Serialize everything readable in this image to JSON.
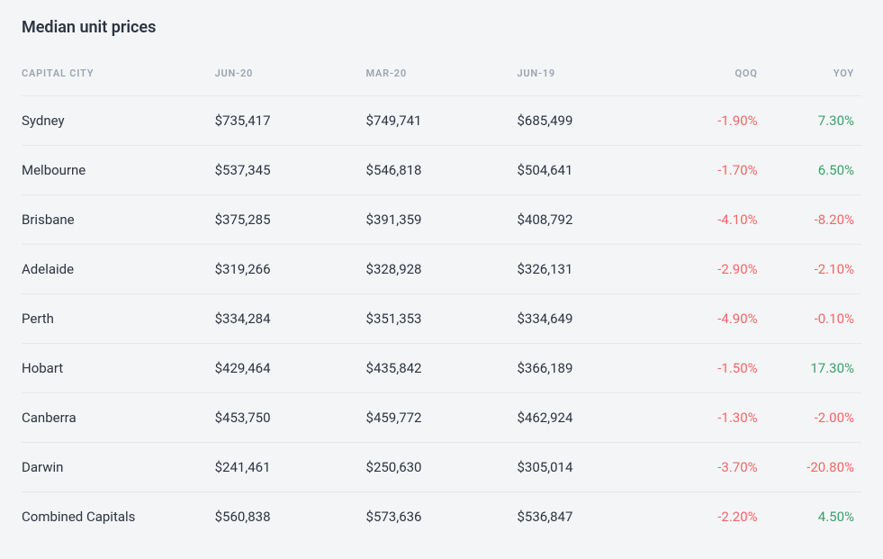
{
  "title": "Median unit prices",
  "table": {
    "type": "table",
    "background_color": "#f4f5f7",
    "border_color": "#e6e8ec",
    "header_color": "#9aa3af",
    "text_color": "#2c3440",
    "negative_color": "#f56565",
    "positive_color": "#38a169",
    "title_fontsize": 18,
    "header_fontsize": 11,
    "cell_fontsize": 15,
    "columns": [
      {
        "key": "city",
        "label": "CAPITAL CITY",
        "align": "left"
      },
      {
        "key": "jun20",
        "label": "JUN-20",
        "align": "left"
      },
      {
        "key": "mar20",
        "label": "MAR-20",
        "align": "left"
      },
      {
        "key": "jun19",
        "label": "JUN-19",
        "align": "left"
      },
      {
        "key": "qoq",
        "label": "QOQ",
        "align": "right"
      },
      {
        "key": "yoy",
        "label": "YOY",
        "align": "right"
      }
    ],
    "rows": [
      {
        "city": "Sydney",
        "jun20": "$735,417",
        "mar20": "$749,741",
        "jun19": "$685,499",
        "qoq": "-1.90%",
        "qoq_sign": "neg",
        "yoy": "7.30%",
        "yoy_sign": "pos"
      },
      {
        "city": "Melbourne",
        "jun20": "$537,345",
        "mar20": "$546,818",
        "jun19": "$504,641",
        "qoq": "-1.70%",
        "qoq_sign": "neg",
        "yoy": "6.50%",
        "yoy_sign": "pos"
      },
      {
        "city": "Brisbane",
        "jun20": "$375,285",
        "mar20": "$391,359",
        "jun19": "$408,792",
        "qoq": "-4.10%",
        "qoq_sign": "neg",
        "yoy": "-8.20%",
        "yoy_sign": "neg"
      },
      {
        "city": "Adelaide",
        "jun20": "$319,266",
        "mar20": "$328,928",
        "jun19": "$326,131",
        "qoq": "-2.90%",
        "qoq_sign": "neg",
        "yoy": "-2.10%",
        "yoy_sign": "neg"
      },
      {
        "city": "Perth",
        "jun20": "$334,284",
        "mar20": "$351,353",
        "jun19": "$334,649",
        "qoq": "-4.90%",
        "qoq_sign": "neg",
        "yoy": "-0.10%",
        "yoy_sign": "neg"
      },
      {
        "city": "Hobart",
        "jun20": "$429,464",
        "mar20": "$435,842",
        "jun19": "$366,189",
        "qoq": "-1.50%",
        "qoq_sign": "neg",
        "yoy": "17.30%",
        "yoy_sign": "pos"
      },
      {
        "city": "Canberra",
        "jun20": "$453,750",
        "mar20": "$459,772",
        "jun19": "$462,924",
        "qoq": "-1.30%",
        "qoq_sign": "neg",
        "yoy": "-2.00%",
        "yoy_sign": "neg"
      },
      {
        "city": "Darwin",
        "jun20": "$241,461",
        "mar20": "$250,630",
        "jun19": "$305,014",
        "qoq": "-3.70%",
        "qoq_sign": "neg",
        "yoy": "-20.80%",
        "yoy_sign": "neg"
      },
      {
        "city": "Combined Capitals",
        "jun20": "$560,838",
        "mar20": "$573,636",
        "jun19": "$536,847",
        "qoq": "-2.20%",
        "qoq_sign": "neg",
        "yoy": "4.50%",
        "yoy_sign": "pos"
      }
    ]
  }
}
